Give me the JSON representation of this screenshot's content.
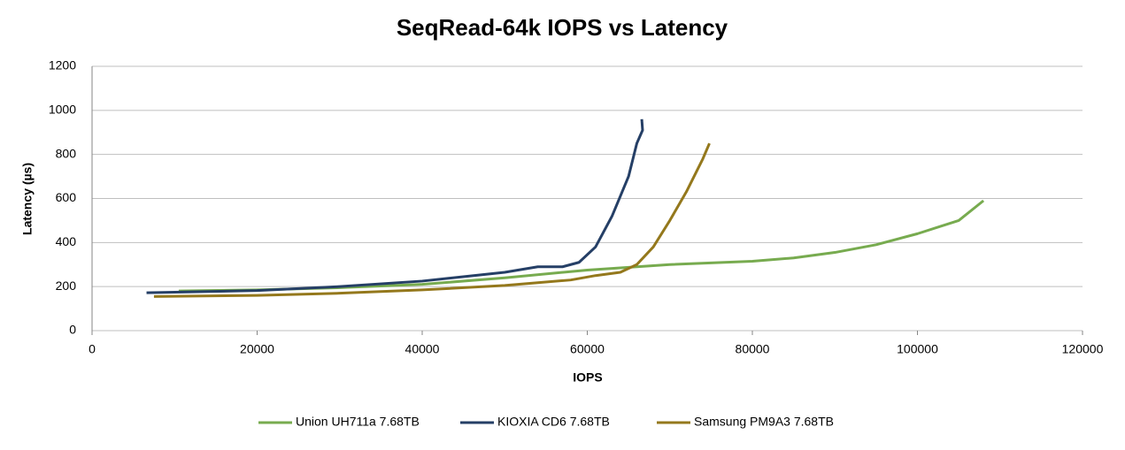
{
  "chart_data": {
    "type": "line",
    "title": "SeqRead-64k IOPS vs Latency",
    "xlabel": "IOPS",
    "ylabel": "Latency (µs)",
    "xlim": [
      0,
      120000
    ],
    "xticks": [
      0,
      20000,
      40000,
      60000,
      80000,
      100000,
      120000
    ],
    "ylim": [
      0,
      1200
    ],
    "yticks": [
      0,
      200,
      400,
      600,
      800,
      1000,
      1200
    ],
    "grid": true,
    "legend": "bottom",
    "series": [
      {
        "name": "Union UH711a 7.68TB",
        "color": "#77ab4f",
        "x": [
          10500,
          20000,
          30000,
          40000,
          50000,
          60000,
          70000,
          80000,
          85000,
          90000,
          95000,
          100000,
          105000,
          108000
        ],
        "values": [
          180,
          185,
          195,
          210,
          240,
          275,
          300,
          315,
          330,
          355,
          390,
          440,
          500,
          590
        ]
      },
      {
        "name": "KIOXIA CD6 7.68TB",
        "color": "#253f66",
        "x": [
          6600,
          20000,
          30000,
          40000,
          50000,
          54000,
          57000,
          59000,
          61000,
          63000,
          65000,
          66000,
          66700,
          66600
        ],
        "values": [
          172,
          182,
          200,
          225,
          265,
          290,
          290,
          310,
          380,
          520,
          700,
          850,
          910,
          960
        ]
      },
      {
        "name": "Samsung PM9A3 7.68TB",
        "color": "#94781c",
        "x": [
          7500,
          20000,
          30000,
          40000,
          50000,
          58000,
          61000,
          64000,
          66000,
          68000,
          70000,
          72000,
          74000,
          74800
        ],
        "values": [
          155,
          160,
          170,
          185,
          205,
          230,
          250,
          265,
          300,
          380,
          500,
          630,
          780,
          850
        ]
      }
    ]
  }
}
